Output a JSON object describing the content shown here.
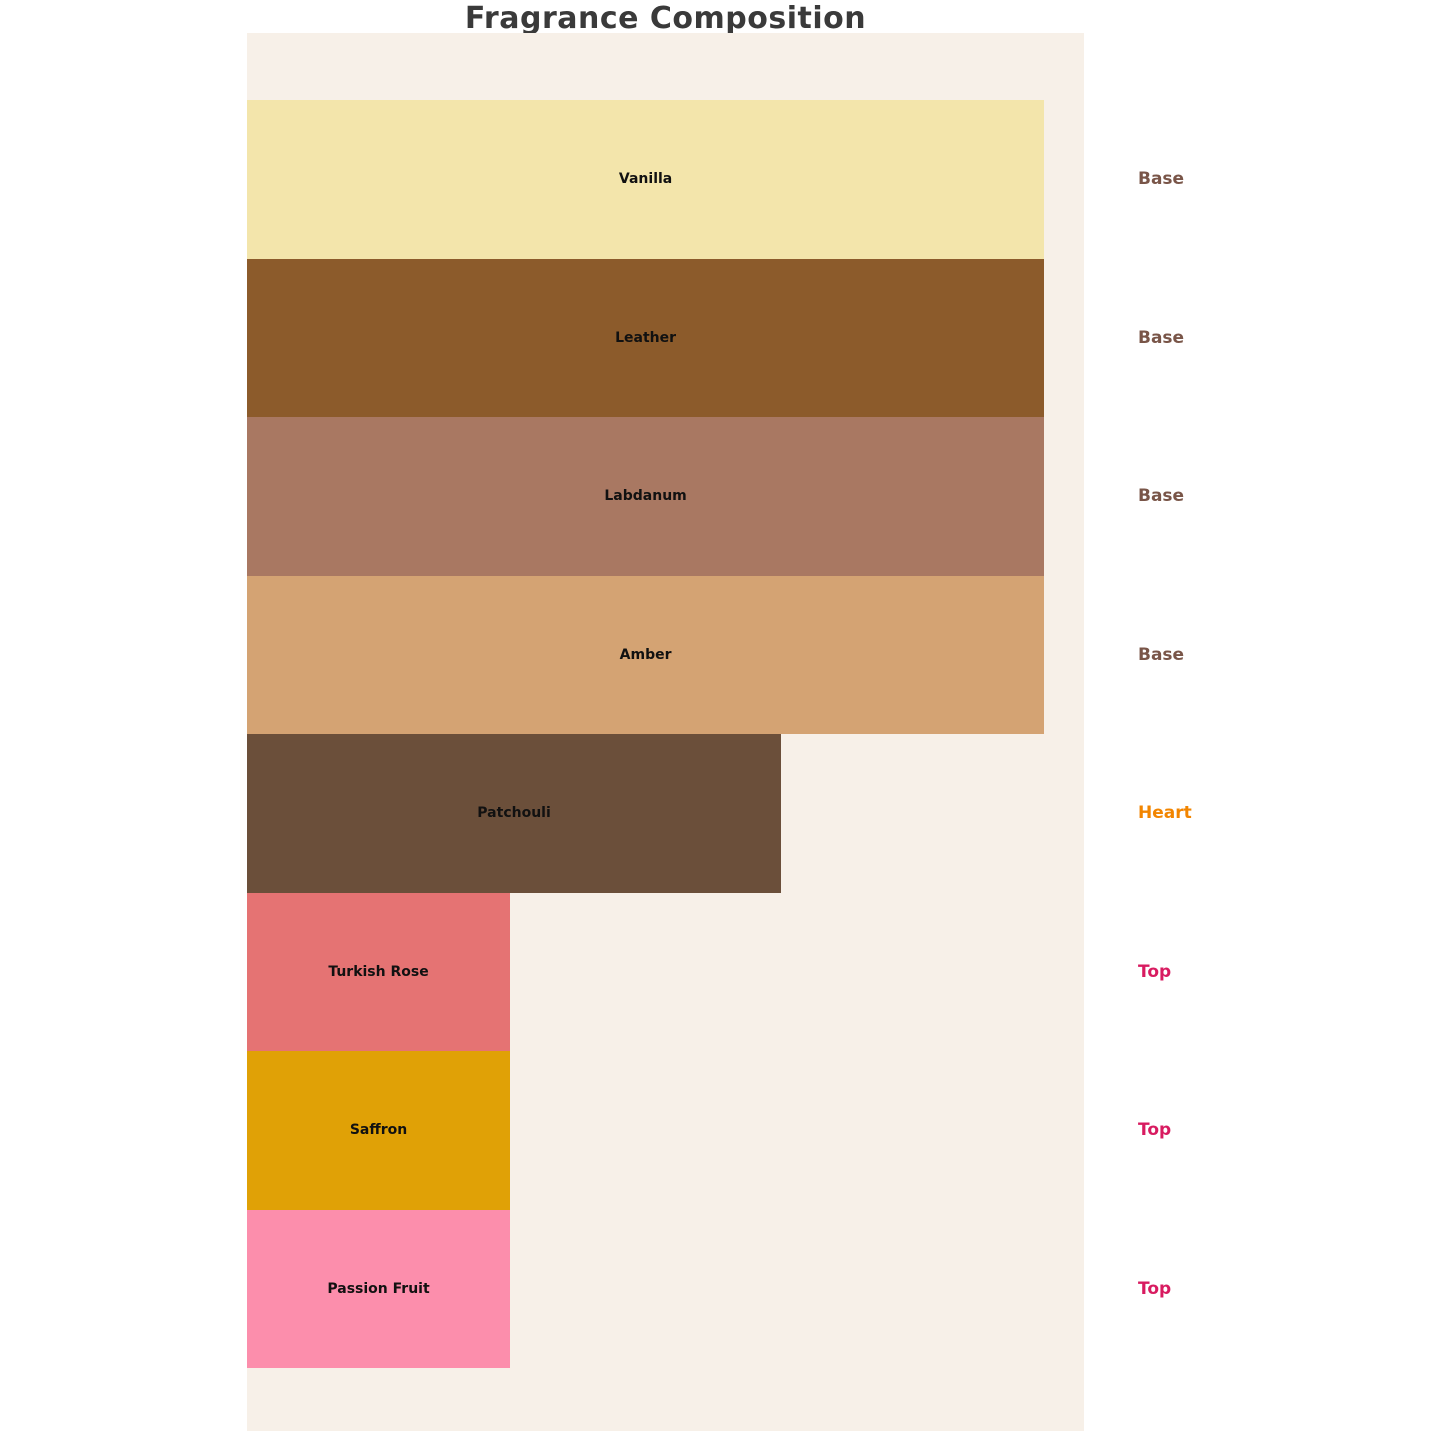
{
  "title": "Fragrance Composition",
  "chart_data": {
    "type": "bar",
    "orientation": "horizontal",
    "title": "Fragrance Composition",
    "xlabel": "",
    "ylabel": "",
    "xlim": [
      0,
      105
    ],
    "grid": false,
    "axes_visible": false,
    "plot_background": "#F7F0E8",
    "figure_background": "#FFFFFF",
    "title_color": "#3A3A3A",
    "bar_label_color": "#111111",
    "notes": [
      {
        "label": "Vanilla",
        "category": "Base",
        "intensity": 100,
        "color": "#F3E5AB"
      },
      {
        "label": "Leather",
        "category": "Base",
        "intensity": 100,
        "color": "#8C5B2B"
      },
      {
        "label": "Labdanum",
        "category": "Base",
        "intensity": 100,
        "color": "#A97862"
      },
      {
        "label": "Amber",
        "category": "Base",
        "intensity": 100,
        "color": "#D4A373"
      },
      {
        "label": "Patchouli",
        "category": "Heart",
        "intensity": 67,
        "color": "#6B4F3A"
      },
      {
        "label": "Turkish Rose",
        "category": "Top",
        "intensity": 33,
        "color": "#E57373"
      },
      {
        "label": "Saffron",
        "category": "Top",
        "intensity": 33,
        "color": "#E0A106"
      },
      {
        "label": "Passion Fruit",
        "category": "Top",
        "intensity": 33,
        "color": "#FC8EAC"
      }
    ],
    "category_colors": {
      "Base": "#795548",
      "Heart": "#F28500",
      "Top": "#D81B60"
    },
    "legend": "none"
  }
}
